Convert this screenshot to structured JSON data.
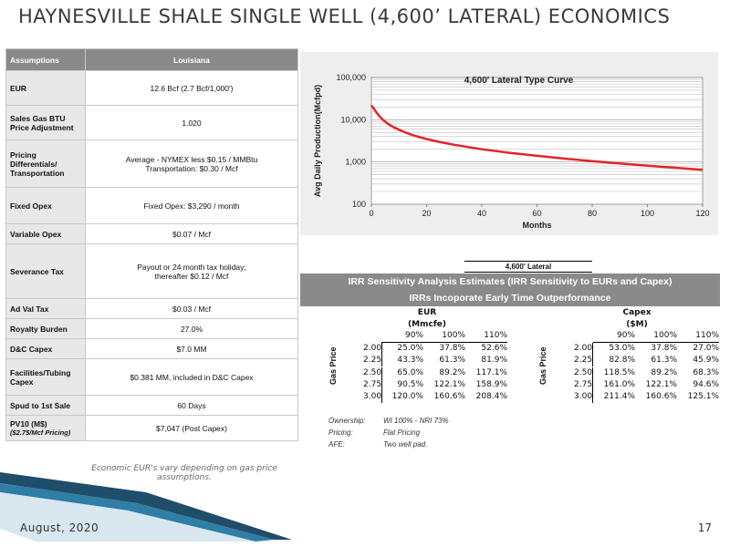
{
  "title": "HAYNESVILLE SHALE SINGLE WELL (4,600’ LATERAL) ECONOMICS",
  "assumptions": {
    "header_left": "Assumptions",
    "header_right": "Louisiana",
    "rows": [
      {
        "label": "EUR",
        "sub": "",
        "value": "12.6 Bcf (2.7 Bcf/1,000')"
      },
      {
        "label": "Sales Gas BTU Price Adjustment",
        "sub": "",
        "value": "1.020"
      },
      {
        "label": "Pricing Differentials/ Transportation",
        "sub": "",
        "value": "Average - NYMEX less $0.15 / MMBtu\nTransportation: $0.30 / Mcf"
      },
      {
        "label": "Fixed Opex",
        "sub": "",
        "value": "Fixed Opex:        $3,290 / month"
      },
      {
        "label": "Variable Opex",
        "sub": "",
        "value": "$0.07 / Mcf"
      },
      {
        "label": "Severance Tax",
        "sub": "",
        "value": "Payout or 24 month tax holiday;\nthereafter $0.12 / Mcf"
      },
      {
        "label": "Ad Val Tax",
        "sub": "",
        "value": "$0.03 / Mcf"
      },
      {
        "label": "Royalty Burden",
        "sub": "",
        "value": "27.0%"
      },
      {
        "label": "D&C Capex",
        "sub": "",
        "value": "$7.0 MM"
      },
      {
        "label": "Facilities/Tubing Capex",
        "sub": "",
        "value": "$0.381 MM, included in D&C Capex"
      },
      {
        "label": "Spud to 1st Sale",
        "sub": "",
        "value": "60 Days"
      },
      {
        "label": "PV10 (M$)",
        "sub": "($2.75/Mcf Pricing)",
        "value": "$7,047 (Post Capex)"
      }
    ],
    "footnote": "Economic EUR's vary depending on gas price assumptions."
  },
  "chart_data": {
    "type": "line",
    "title": "4,600' Lateral Type Curve",
    "xlabel": "Months",
    "ylabel": "Avg Daily Production(Mcfpd)",
    "yscale": "log",
    "xlim": [
      0,
      120
    ],
    "ylim": [
      100,
      100000
    ],
    "x_ticks": [
      "0",
      "20",
      "40",
      "60",
      "80",
      "100",
      "120"
    ],
    "y_ticks": [
      "100",
      "1,000",
      "10,000",
      "100,000"
    ],
    "grid": true,
    "series": [
      {
        "color": "#e0262b",
        "x": [
          0,
          1,
          2,
          3,
          4,
          6,
          8,
          10,
          12,
          15,
          20,
          25,
          30,
          40,
          50,
          60,
          70,
          80,
          90,
          100,
          110,
          120
        ],
        "y": [
          22000,
          18000,
          14500,
          12000,
          10200,
          8000,
          6700,
          5800,
          5100,
          4300,
          3500,
          2950,
          2550,
          2000,
          1650,
          1400,
          1200,
          1050,
          920,
          820,
          730,
          650
        ]
      }
    ]
  },
  "irr": {
    "lateral_label": "4,600' Lateral",
    "header_line1": "IRR Sensitivity Analysis Estimates (IRR Sensitivity to EURs and Capex)",
    "header_line2": "IRRs Incoporate Early Time Outperformance",
    "gas_price_label": "Gas Price",
    "eur": {
      "title": "EUR\n(Mmcfe)",
      "columns": [
        "90%",
        "100%",
        "110%"
      ],
      "rows": [
        {
          "price": "2.00",
          "values": [
            "25.0%",
            "37.8%",
            "52.6%"
          ]
        },
        {
          "price": "2.25",
          "values": [
            "43.3%",
            "61.3%",
            "81.9%"
          ]
        },
        {
          "price": "2.50",
          "values": [
            "65.0%",
            "89.2%",
            "117.1%"
          ]
        },
        {
          "price": "2.75",
          "values": [
            "90.5%",
            "122.1%",
            "158.9%"
          ]
        },
        {
          "price": "3.00",
          "values": [
            "120.0%",
            "160.6%",
            "208.4%"
          ]
        }
      ]
    },
    "capex": {
      "title": "Capex\n($M)",
      "columns": [
        "90%",
        "100%",
        "110%"
      ],
      "rows": [
        {
          "price": "2.00",
          "values": [
            "53.0%",
            "37.8%",
            "27.0%"
          ]
        },
        {
          "price": "2.25",
          "values": [
            "82.8%",
            "61.3%",
            "45.9%"
          ]
        },
        {
          "price": "2.50",
          "values": [
            "118.5%",
            "89.2%",
            "68.3%"
          ]
        },
        {
          "price": "2.75",
          "values": [
            "161.0%",
            "122.1%",
            "94.6%"
          ]
        },
        {
          "price": "3.00",
          "values": [
            "211.4%",
            "160.6%",
            "125.1%"
          ]
        }
      ]
    },
    "notes": [
      {
        "key": "Ownership:",
        "value": "WI 100% - NRI 73%"
      },
      {
        "key": "Pricing:",
        "value": "Flat Pricing"
      },
      {
        "key": "AFE:",
        "value": "Two well pad."
      }
    ]
  },
  "footer": {
    "date": "August, 2020",
    "page": "17"
  }
}
